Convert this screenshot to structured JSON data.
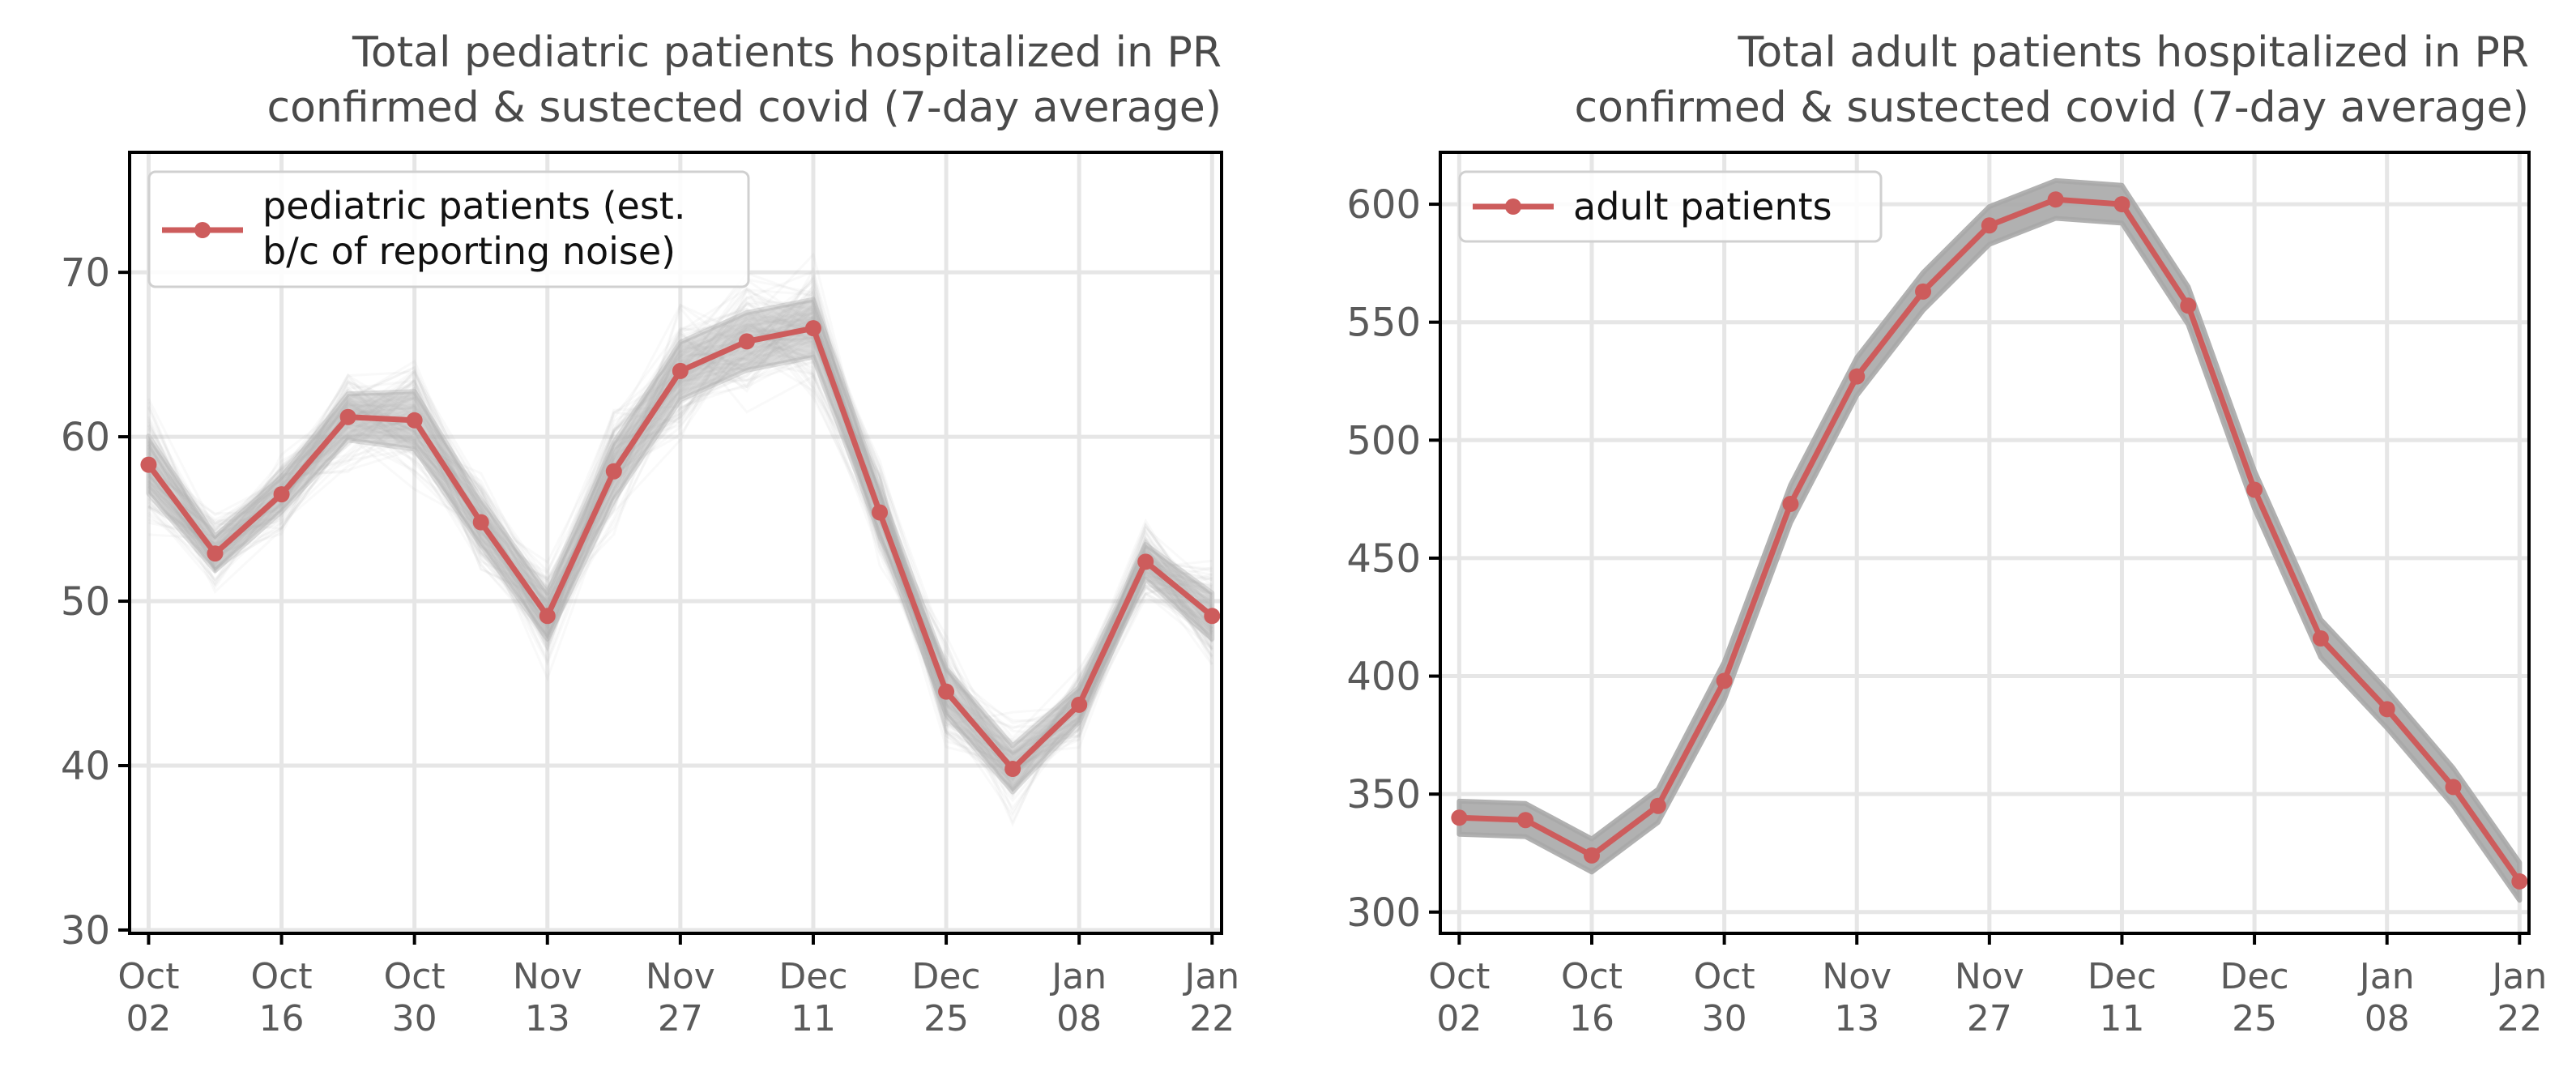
{
  "chart_data": [
    {
      "type": "line",
      "title_lines": [
        "Total pediatric patients hospitalized in PR",
        "confirmed & sustected covid (7-day average)"
      ],
      "xlabel": "",
      "ylabel": "",
      "x": [
        "2022-10-02",
        "2022-10-09",
        "2022-10-16",
        "2022-10-23",
        "2022-10-30",
        "2022-11-06",
        "2022-11-13",
        "2022-11-20",
        "2022-11-27",
        "2022-12-04",
        "2022-12-11",
        "2022-12-18",
        "2022-12-25",
        "2023-01-01",
        "2023-01-08",
        "2023-01-15",
        "2023-01-22"
      ],
      "xticks": [
        {
          "date": "2022-10-02",
          "line1": "Oct",
          "line2": "02"
        },
        {
          "date": "2022-10-16",
          "line1": "Oct",
          "line2": "16"
        },
        {
          "date": "2022-10-30",
          "line1": "Oct",
          "line2": "30"
        },
        {
          "date": "2022-11-13",
          "line1": "Nov",
          "line2": "13"
        },
        {
          "date": "2022-11-27",
          "line1": "Nov",
          "line2": "27"
        },
        {
          "date": "2022-12-11",
          "line1": "Dec",
          "line2": "11"
        },
        {
          "date": "2022-12-25",
          "line1": "Dec",
          "line2": "25"
        },
        {
          "date": "2023-01-08",
          "line1": "Jan",
          "line2": "08"
        },
        {
          "date": "2023-01-22",
          "line1": "Jan",
          "line2": "22"
        }
      ],
      "yticks": [
        "30",
        "40",
        "50",
        "60",
        "70"
      ],
      "ylim": [
        29.8,
        77.3
      ],
      "xlim": [
        "2022-09-30",
        "2023-01-23"
      ],
      "grid": true,
      "legend_position": "upper-left",
      "series": [
        {
          "name_lines": [
            "pediatric patients (est.",
            "b/c of reporting noise)"
          ],
          "color": "#cd5c5c",
          "values": [
            58.3,
            52.9,
            56.5,
            61.2,
            61.0,
            54.8,
            49.1,
            57.9,
            64.0,
            65.8,
            66.6,
            55.4,
            44.5,
            39.8,
            43.7,
            52.4,
            49.1
          ]
        }
      ],
      "uncertainty_band": {
        "color": "#b0b0b0",
        "halfwidth": [
          5,
          3,
          3,
          4,
          5,
          4,
          4,
          5,
          5,
          5,
          5,
          4,
          4,
          4,
          3,
          3,
          4
        ]
      }
    },
    {
      "type": "line",
      "title_lines": [
        "Total adult patients hospitalized in PR",
        "confirmed & sustected covid (7-day average)"
      ],
      "xlabel": "",
      "ylabel": "",
      "x": [
        "2022-10-02",
        "2022-10-09",
        "2022-10-16",
        "2022-10-23",
        "2022-10-30",
        "2022-11-06",
        "2022-11-13",
        "2022-11-20",
        "2022-11-27",
        "2022-12-04",
        "2022-12-11",
        "2022-12-18",
        "2022-12-25",
        "2023-01-01",
        "2023-01-08",
        "2023-01-15",
        "2023-01-22"
      ],
      "xticks": [
        {
          "date": "2022-10-02",
          "line1": "Oct",
          "line2": "02"
        },
        {
          "date": "2022-10-16",
          "line1": "Oct",
          "line2": "16"
        },
        {
          "date": "2022-10-30",
          "line1": "Oct",
          "line2": "30"
        },
        {
          "date": "2022-11-13",
          "line1": "Nov",
          "line2": "13"
        },
        {
          "date": "2022-11-27",
          "line1": "Nov",
          "line2": "27"
        },
        {
          "date": "2022-12-11",
          "line1": "Dec",
          "line2": "11"
        },
        {
          "date": "2022-12-25",
          "line1": "Dec",
          "line2": "25"
        },
        {
          "date": "2023-01-08",
          "line1": "Jan",
          "line2": "08"
        },
        {
          "date": "2023-01-22",
          "line1": "Jan",
          "line2": "22"
        }
      ],
      "yticks": [
        "300",
        "350",
        "400",
        "450",
        "500",
        "550",
        "600"
      ],
      "ylim": [
        291,
        622
      ],
      "xlim": [
        "2022-09-30",
        "2023-01-23"
      ],
      "grid": true,
      "legend_position": "upper-left",
      "series": [
        {
          "name_lines": [
            "adult patients"
          ],
          "color": "#cd5c5c",
          "values": [
            340,
            339,
            324,
            345,
            398,
            473,
            527,
            563,
            591,
            602,
            600,
            557,
            479,
            416,
            386,
            353,
            313
          ]
        }
      ],
      "uncertainty_band": {
        "color": "#a8a8a8",
        "halfwidth": [
          7,
          7,
          7,
          7,
          8,
          8,
          8,
          8,
          8,
          8,
          8,
          8,
          8,
          8,
          8,
          8,
          8
        ]
      }
    }
  ]
}
